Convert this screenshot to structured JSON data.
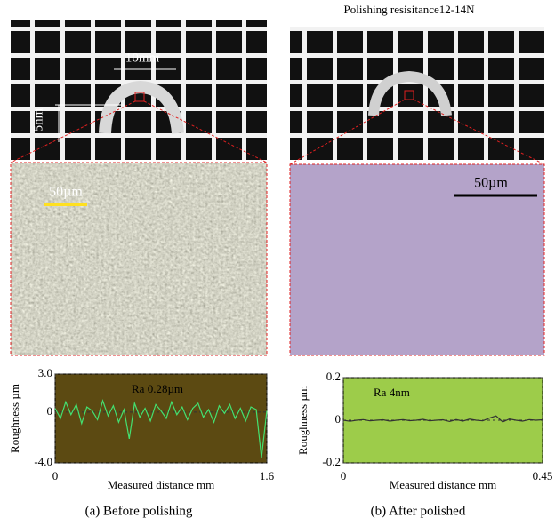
{
  "figure": {
    "title": "Polishing resisitance12-14N",
    "panels": [
      {
        "dim_width": "10mm",
        "dim_height": "5nm",
        "scale_bar": "50µm",
        "caption": "(a) Before polishing"
      },
      {
        "scale_bar": "50µm",
        "caption": "(b) After polished"
      }
    ]
  },
  "chart_data": [
    {
      "type": "line",
      "annotation": "Ra 0.28µm",
      "y_label": "Roughness µm",
      "x_label": "Measured distance mm",
      "xlim": [
        0,
        1.6
      ],
      "xticks": [
        0,
        1.6
      ],
      "ylim": [
        -4,
        3
      ],
      "yticks": [
        {
          "value": 3,
          "label": "3.0"
        },
        0,
        {
          "value": -4,
          "label": "-4.0"
        }
      ],
      "grid": true,
      "x": [
        0,
        0.04,
        0.08,
        0.12,
        0.16,
        0.2,
        0.24,
        0.28,
        0.32,
        0.36,
        0.4,
        0.44,
        0.48,
        0.52,
        0.56,
        0.6,
        0.64,
        0.68,
        0.72,
        0.76,
        0.8,
        0.84,
        0.88,
        0.92,
        0.96,
        1,
        1.04,
        1.08,
        1.12,
        1.16,
        1.2,
        1.24,
        1.28,
        1.32,
        1.36,
        1.4,
        1.44,
        1.48,
        1.52,
        1.56,
        1.6
      ],
      "series": [
        {
          "color": "#44e070",
          "values": [
            0.3,
            -0.5,
            0.8,
            -0.2,
            0.6,
            -0.9,
            0.4,
            0.1,
            -0.6,
            0.9,
            -0.3,
            0.5,
            -0.8,
            0.2,
            -2.1,
            0.7,
            -0.4,
            0.3,
            -0.7,
            0.6,
            0.1,
            -0.5,
            0.8,
            -0.2,
            0.4,
            -0.6,
            0.3,
            0.7,
            -0.4,
            0.2,
            -0.8,
            0.5,
            -0.1,
            0.6,
            -0.5,
            0.3,
            -0.7,
            0.4,
            0.2,
            -3.6,
            0.1
          ]
        }
      ]
    },
    {
      "type": "line",
      "annotation": "Ra 4nm",
      "y_label": "Roughness µm",
      "x_label": "Measured distance mm",
      "xlim": [
        0,
        0.45
      ],
      "xticks": [
        0,
        0.45
      ],
      "ylim": [
        -0.2,
        0.2
      ],
      "yticks": [
        -0.2,
        0,
        0.2
      ],
      "grid": true,
      "x": [
        0,
        0.015,
        0.03,
        0.045,
        0.06,
        0.075,
        0.09,
        0.105,
        0.12,
        0.135,
        0.15,
        0.165,
        0.18,
        0.195,
        0.21,
        0.225,
        0.24,
        0.255,
        0.27,
        0.285,
        0.3,
        0.315,
        0.33,
        0.345,
        0.36,
        0.375,
        0.39,
        0.405,
        0.42,
        0.435,
        0.45
      ],
      "series": [
        {
          "color": "#333333",
          "values": [
            0,
            -0.005,
            0,
            0.003,
            -0.003,
            0,
            0.002,
            -0.004,
            0,
            0.003,
            -0.002,
            0,
            0.004,
            -0.003,
            0,
            0.002,
            -0.006,
            0.003,
            -0.004,
            0.005,
            0,
            -0.003,
            0.01,
            0.02,
            -0.008,
            0.006,
            0,
            -0.004,
            0.003,
            0,
            0.002
          ]
        }
      ]
    }
  ]
}
